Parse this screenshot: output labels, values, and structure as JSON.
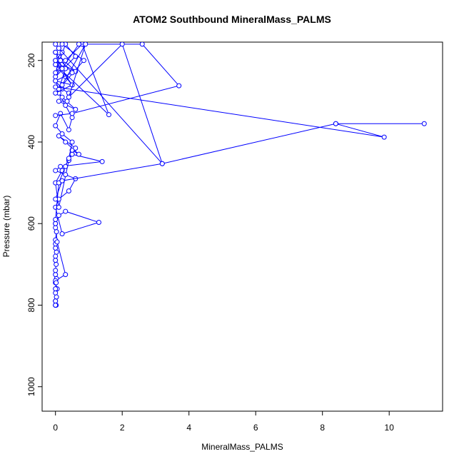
{
  "chart_data": {
    "type": "line",
    "title": "ATOM2 Southbound MineralMass_PALMS",
    "xlabel": "MineralMass_PALMS",
    "ylabel": "Pressure (mbar)",
    "xlim": [
      -0.4,
      11.6
    ],
    "ylim": [
      1060,
      155
    ],
    "y_axis_inverted": true,
    "x_ticks": [
      0,
      2,
      4,
      6,
      8,
      10
    ],
    "y_ticks": [
      200,
      400,
      600,
      800,
      1000
    ],
    "grid": false,
    "legend": "none",
    "color": "#0000ff",
    "marker": "open-circle",
    "series": [
      {
        "x": [
          0.0,
          0.02,
          0.0,
          0.05,
          0.0,
          0.03,
          0.0,
          0.0,
          0.02,
          0.0,
          0.0,
          0.03,
          0.0,
          0.0,
          0.0,
          0.03,
          0.0,
          0.0,
          0.05,
          0.3,
          0.0,
          0.02,
          0.0,
          0.0,
          0.03,
          0.0,
          0.0,
          0.0
        ],
        "y": [
          800,
          800,
          790,
          760,
          745,
          735,
          725,
          715,
          700,
          690,
          680,
          670,
          660,
          650,
          640,
          620,
          610,
          600,
          645,
          725,
          740,
          745,
          760,
          770,
          780,
          790,
          800,
          800
        ]
      },
      {
        "x": [
          0.0,
          0.1,
          0.3,
          1.3,
          0.2,
          0.0,
          0.1,
          0.4,
          0.6,
          0.3,
          0.0,
          0.15,
          1.4,
          0.5,
          0.2,
          0.0,
          0.1,
          0.4,
          0.5,
          0.7,
          0.3,
          0.1,
          0.6,
          0.4
        ],
        "y": [
          600,
          580,
          570,
          597,
          625,
          560,
          540,
          520,
          490,
          480,
          470,
          460,
          448,
          430,
          470,
          500,
          560,
          445,
          420,
          430,
          400,
          385,
          415,
          445
        ]
      },
      {
        "x": [
          0.0,
          0.1,
          0.3,
          0.4,
          0.5,
          0.2,
          0.0,
          0.15,
          0.4,
          0.5,
          0.3,
          0.1,
          0.2,
          0.6,
          0.1,
          0.35,
          0.4,
          0.2,
          0.0,
          0.5,
          0.3,
          0.1,
          0.0
        ],
        "y": [
          590,
          500,
          460,
          440,
          400,
          380,
          360,
          330,
          370,
          340,
          310,
          280,
          290,
          320,
          300,
          300,
          280,
          270,
          250,
          260,
          240,
          220,
          210
        ]
      },
      {
        "x": [
          0.0,
          1.6,
          0.8,
          0.3,
          0.0,
          0.6,
          0.3,
          0.0,
          0.2,
          0.1,
          0.0,
          0.6,
          0.0,
          0.5,
          0.0,
          0.85,
          0.2
        ],
        "y": [
          210,
          333,
          160,
          200,
          240,
          190,
          160,
          230,
          210,
          190,
          180,
          227,
          200,
          260,
          280,
          200,
          160
        ]
      },
      {
        "x": [
          0.0,
          0.15,
          0.5,
          0.0,
          0.1,
          0.3,
          0.0,
          0.2,
          0.1,
          0.0
        ],
        "y": [
          180,
          200,
          230,
          250,
          270,
          220,
          200,
          180,
          170,
          160
        ]
      },
      {
        "x": [
          0.0,
          0.5,
          3.7,
          2.6,
          0.7,
          0.2
        ],
        "y": [
          335,
          330,
          262,
          160,
          160,
          220
        ]
      },
      {
        "x": [
          0.1,
          3.2,
          2.0,
          0.4,
          0.9,
          0.2
        ],
        "y": [
          170,
          453,
          160,
          290,
          160,
          260
        ]
      },
      {
        "x": [
          0.0,
          9.85,
          8.4,
          11.05,
          8.4,
          3.2,
          0.2,
          0.0
        ],
        "y": [
          265,
          388,
          355,
          355,
          355,
          453,
          495,
          540
        ]
      }
    ]
  }
}
